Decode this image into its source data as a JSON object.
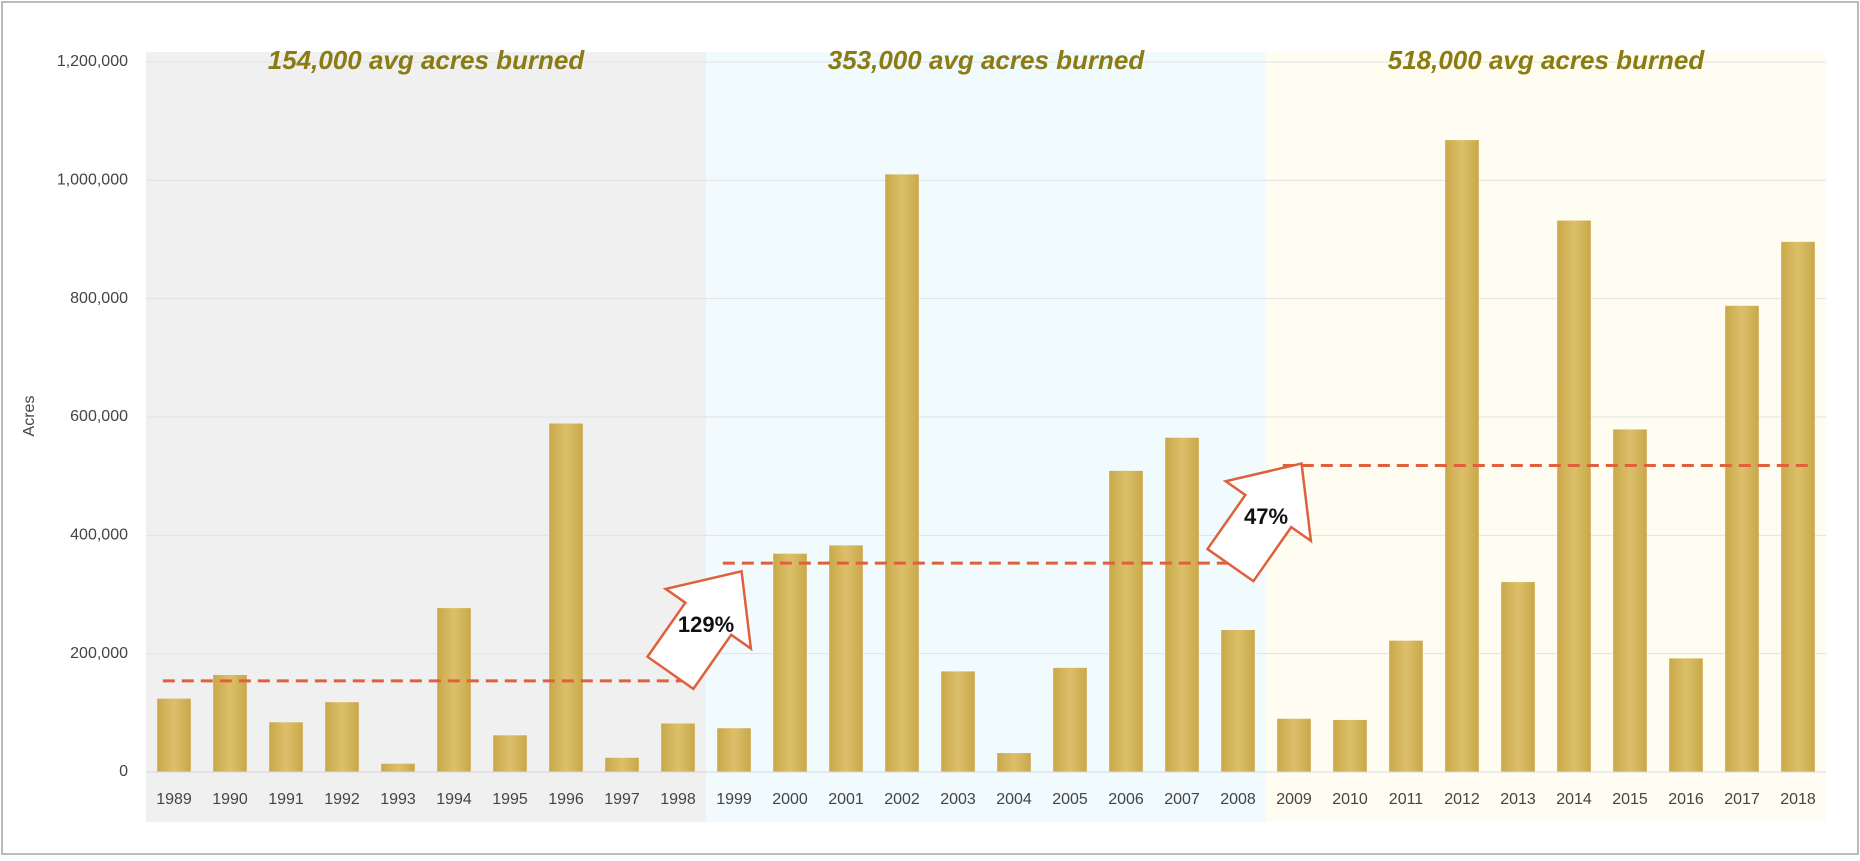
{
  "chart_data": {
    "type": "bar",
    "ylabel": "Acres",
    "categories": [
      "1989",
      "1990",
      "1991",
      "1992",
      "1993",
      "1994",
      "1995",
      "1996",
      "1997",
      "1998",
      "1999",
      "2000",
      "2001",
      "2002",
      "2003",
      "2004",
      "2005",
      "2006",
      "2007",
      "2008",
      "2009",
      "2010",
      "2011",
      "2012",
      "2013",
      "2014",
      "2015",
      "2016",
      "2017",
      "2018"
    ],
    "values": [
      124000,
      164000,
      84000,
      118000,
      14000,
      277000,
      62000,
      589000,
      24000,
      82000,
      74000,
      369000,
      383000,
      1010000,
      170000,
      32000,
      176000,
      509000,
      565000,
      240000,
      90000,
      88000,
      222000,
      1068000,
      321000,
      932000,
      579000,
      192000,
      788000,
      896000
    ],
    "color": "#d2b256",
    "ylim": [
      0,
      1200000
    ],
    "yticks": [
      0,
      {
        "value": 200000,
        "label": "200,000"
      },
      {
        "value": 400000,
        "label": "400,000"
      },
      {
        "value": 600000,
        "label": "600,000"
      },
      {
        "value": 800000,
        "label": "800,000"
      },
      {
        "value": 1000000,
        "label": "1,000,000"
      },
      {
        "value": 1200000,
        "label": "1,200,000"
      }
    ],
    "grid": true,
    "periods": [
      {
        "label": "154,000 avg acres burned",
        "start": "1989",
        "end": "1998",
        "avg": 154000,
        "background": "#f0f0f0"
      },
      {
        "label": "353,000 avg acres burned",
        "start": "1999",
        "end": "2008",
        "avg": 353000,
        "background": "#f1fafd"
      },
      {
        "label": "518,000 avg acres burned",
        "start": "2009",
        "end": "2018",
        "avg": 518000,
        "background": "#fffdf1"
      }
    ],
    "avg_line_color": "#e0603c",
    "period_label_color": "#8a7c12",
    "increases": [
      {
        "value": 129,
        "label": "129%"
      },
      {
        "value": 47,
        "label": "47%"
      }
    ]
  }
}
